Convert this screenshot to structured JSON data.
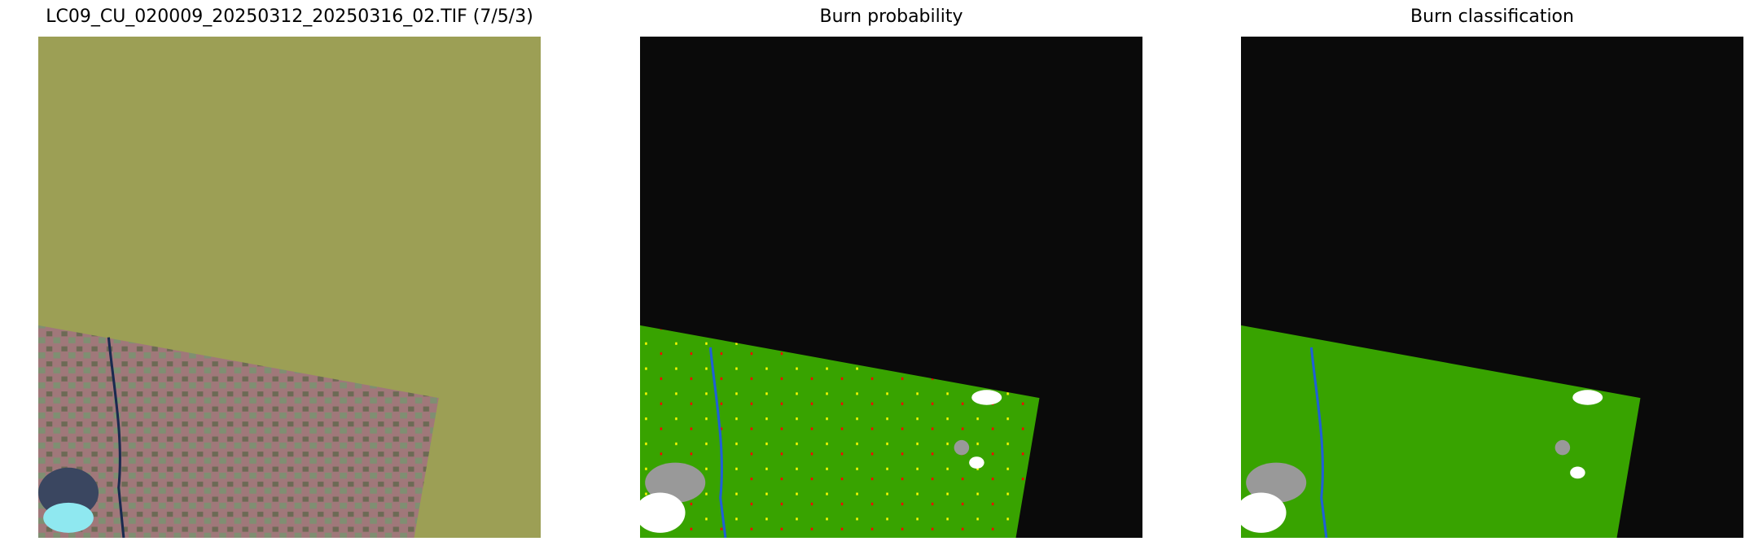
{
  "figure": {
    "panels": [
      {
        "title": "LC09_CU_020009_20250312_20250316_02.TIF (7/5/3)",
        "kind": "false-color composite",
        "nodata_color": "#9c9f55"
      },
      {
        "title": "Burn probability",
        "kind": "probability map",
        "nodata_color": "#0a0a0a"
      },
      {
        "title": "Burn classification",
        "kind": "classification map",
        "nodata_color": "#0a0a0a"
      }
    ],
    "colors": {
      "unburned": "#38a300",
      "cloud": "#ffffff",
      "cloud_shadow": "#999999",
      "water": "#1f5fd6",
      "burn_low": "#ffff00",
      "burn_high": "#ff0000",
      "composite_land": "#a0787a"
    }
  }
}
